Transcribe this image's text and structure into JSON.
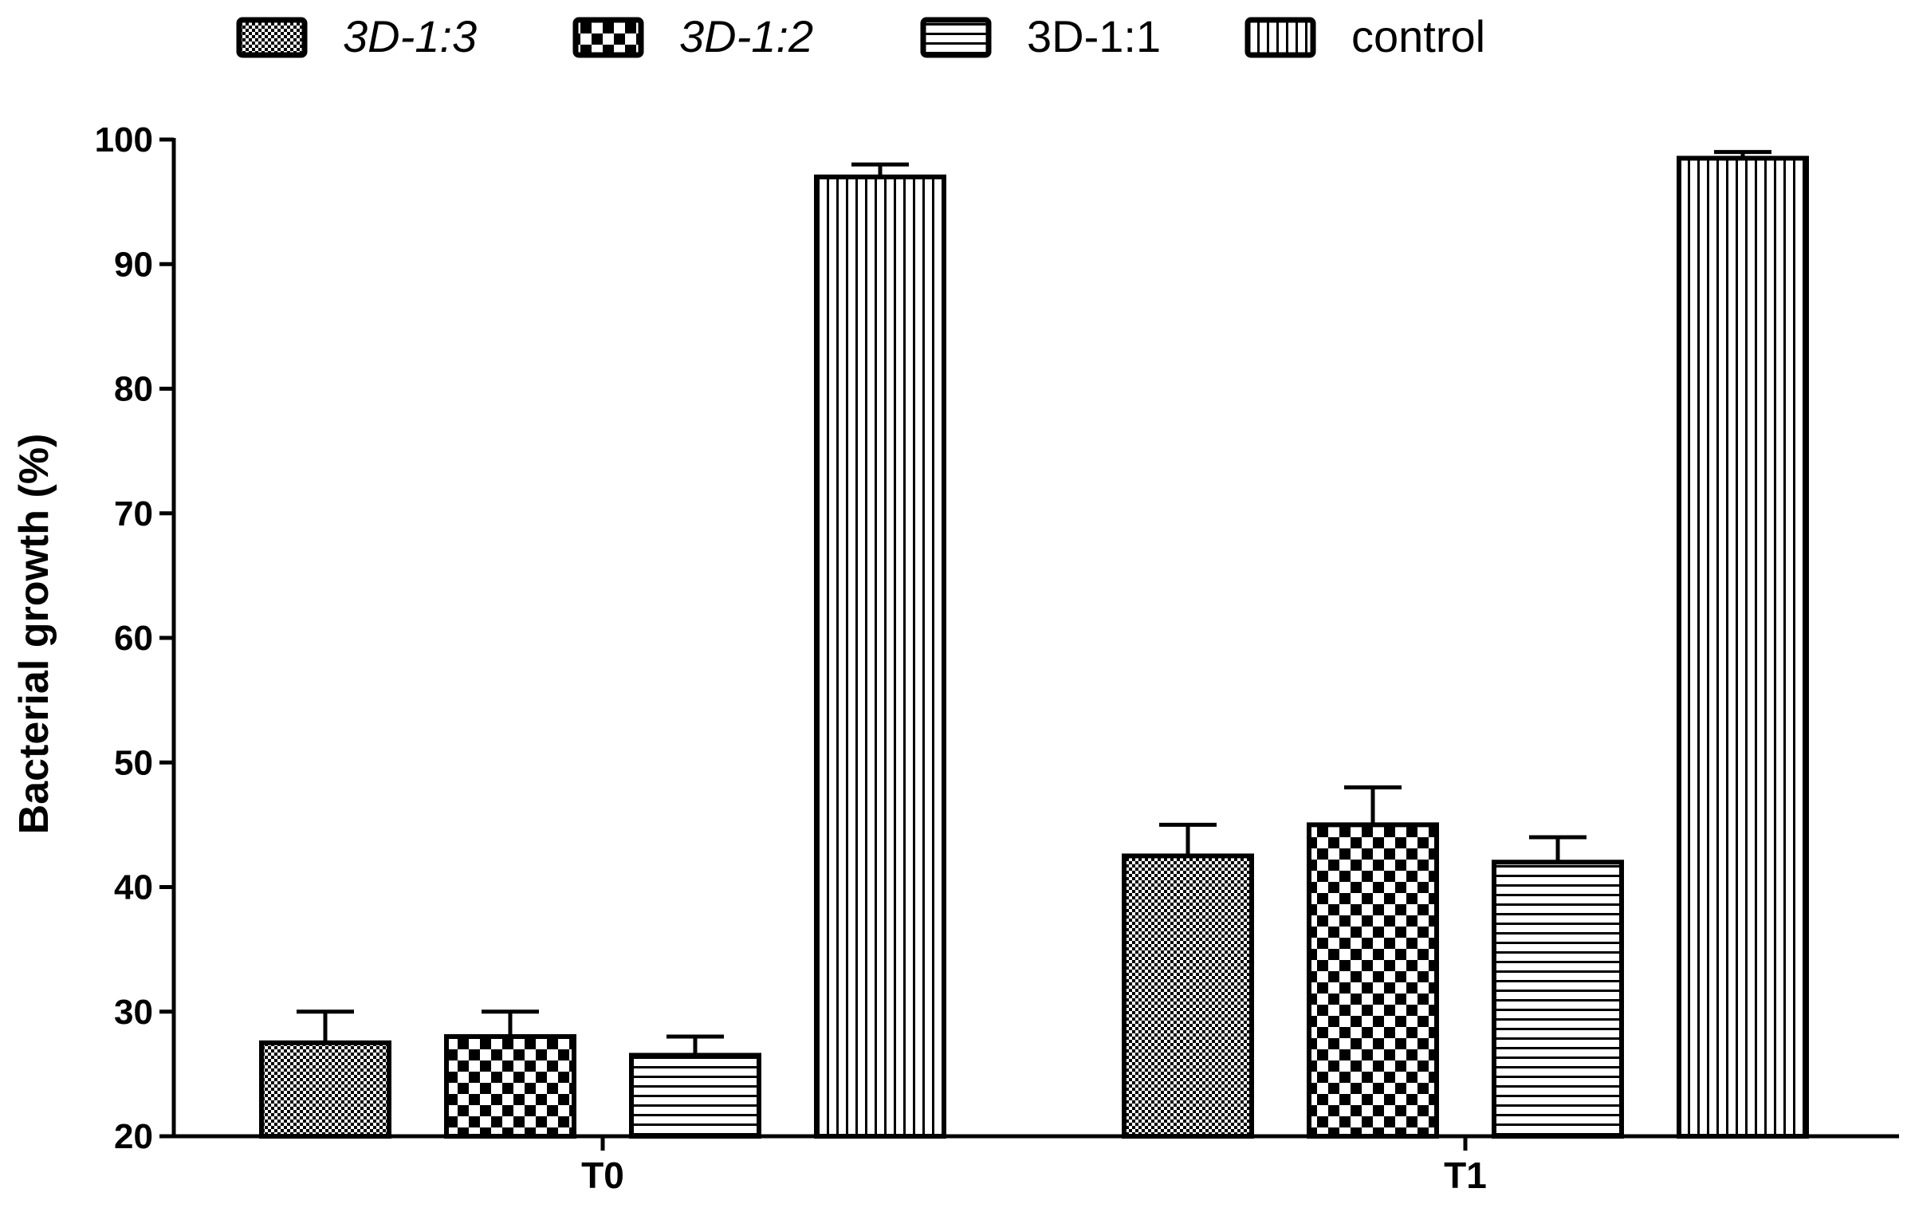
{
  "chart_data": {
    "type": "bar",
    "ylabel": "Bacterial growth (%)",
    "xlabel": "",
    "ylim": [
      20,
      100
    ],
    "yticks": [
      "20",
      "30",
      "40",
      "50",
      "60",
      "70",
      "80",
      "90",
      "100"
    ],
    "categories": [
      "T0",
      "T1"
    ],
    "series": [
      {
        "name": "3D-1:3",
        "italic": true,
        "pattern": "fine-checker",
        "values": [
          27.5,
          42.5
        ],
        "errors": [
          2.5,
          2.5
        ]
      },
      {
        "name": "3D-1:2",
        "italic": true,
        "pattern": "checker",
        "values": [
          28.0,
          45.0
        ],
        "errors": [
          2.0,
          3.0
        ]
      },
      {
        "name": "3D-1:1",
        "italic": false,
        "pattern": "horizontal-lines",
        "values": [
          26.5,
          42.0
        ],
        "errors": [
          1.5,
          2.0
        ]
      },
      {
        "name": "control",
        "italic": false,
        "pattern": "vertical-lines",
        "values": [
          97.0,
          98.5
        ],
        "errors": [
          1.0,
          0.5
        ]
      }
    ],
    "legend_position": "top",
    "grid": false,
    "colors": {
      "ink": "#000000",
      "fill": "#ffffff"
    }
  }
}
